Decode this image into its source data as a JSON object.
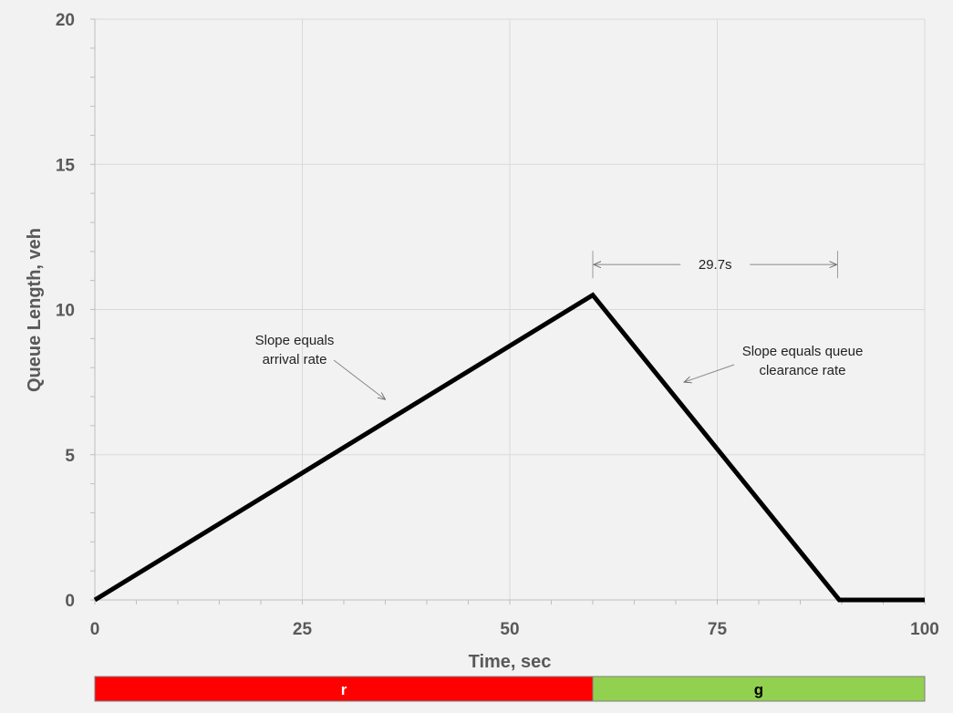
{
  "chart_data": {
    "type": "line",
    "xlabel": "Time, sec",
    "ylabel": "Queue Length, veh",
    "xlim": [
      0,
      100
    ],
    "ylim": [
      0,
      20
    ],
    "x_ticks": [
      0,
      25,
      50,
      75,
      100
    ],
    "y_ticks": [
      0,
      5,
      10,
      15,
      20
    ],
    "grid": true,
    "series": [
      {
        "values": [
          [
            0,
            0
          ],
          [
            60,
            10.5
          ],
          [
            89.7,
            0
          ],
          [
            100,
            0
          ]
        ],
        "color": "#000000"
      }
    ],
    "annotations": [
      {
        "lines": [
          "Slope equals",
          "arrival rate"
        ],
        "arrow_to": [
          35,
          6.9
        ]
      },
      {
        "lines": [
          "Slope equals queue",
          "clearance rate"
        ],
        "arrow_to": [
          71,
          7.5
        ]
      }
    ],
    "dimension": {
      "label": "29.7s",
      "x_start": 60,
      "x_end": 89.5,
      "y": 11.8
    },
    "signal_bar": [
      {
        "label": "r",
        "start": 0,
        "end": 60,
        "color": "#ff0000",
        "text_color": "#ffffff"
      },
      {
        "label": "g",
        "start": 60,
        "end": 100,
        "color": "#92d050",
        "text_color": "#000000"
      }
    ]
  }
}
